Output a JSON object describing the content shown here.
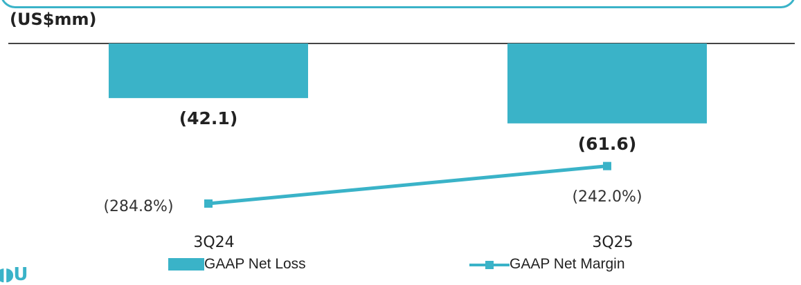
{
  "unit_label": "(US$mm)",
  "colors": {
    "accent": "#3ab3c8",
    "text": "#222222"
  },
  "chart_data": {
    "type": "bar",
    "title": "",
    "categories": [
      "3Q24",
      "3Q25"
    ],
    "series": [
      {
        "name": "GAAP Net Loss",
        "type": "bar",
        "values": [
          -42.1,
          -61.6
        ],
        "labels": [
          "(42.1)",
          "(61.6)"
        ]
      },
      {
        "name": "GAAP Net Margin",
        "type": "line",
        "values": [
          -284.8,
          -242.0
        ],
        "labels": [
          "(284.8%)",
          "(242.0%)"
        ]
      }
    ],
    "legend_position": "bottom",
    "grid": false
  },
  "legend": {
    "bar_label": "GAAP Net Loss",
    "line_label": "GAAP Net Margin"
  }
}
